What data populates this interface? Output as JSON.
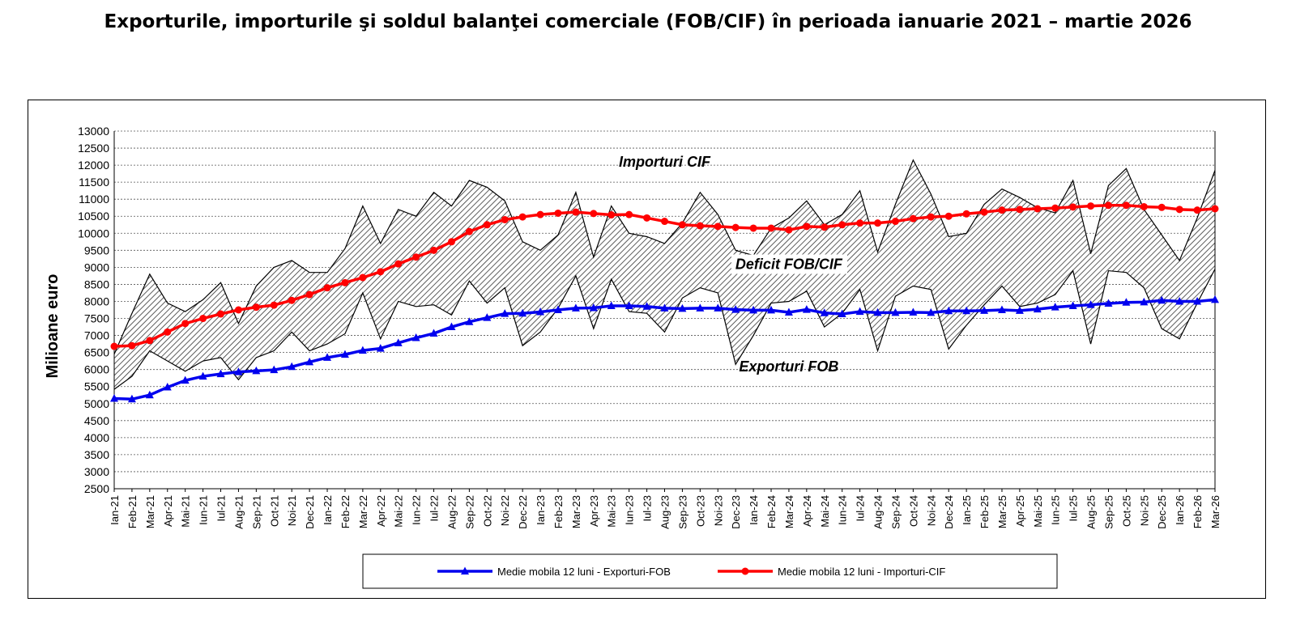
{
  "title": "Exporturile, importurile şi soldul balanţei comerciale (FOB/CIF) în perioada ianuarie 2021 – martie 2026",
  "chart_data": {
    "type": "line",
    "ylabel": "Milioane  euro",
    "xlabel": "",
    "ylim": [
      2500,
      13000
    ],
    "ytick_step": 500,
    "grid": true,
    "legend_position": "bottom",
    "categories": [
      "Ian-21",
      "Feb-21",
      "Mar-21",
      "Apr-21",
      "Mai-21",
      "Iun-21",
      "Iul-21",
      "Aug-21",
      "Sep-21",
      "Oct-21",
      "Noi-21",
      "Dec-21",
      "Ian-22",
      "Feb-22",
      "Mar-22",
      "Apr-22",
      "Mai-22",
      "Iun-22",
      "Iul-22",
      "Aug-22",
      "Sep-22",
      "Oct-22",
      "Noi-22",
      "Dec-22",
      "Ian-23",
      "Feb-23",
      "Mar-23",
      "Apr-23",
      "Mai-23",
      "Iun-23",
      "Iul-23",
      "Aug-23",
      "Sep-23",
      "Oct-23",
      "Noi-23",
      "Dec-23",
      "Ian-24",
      "Feb-24",
      "Mar-24",
      "Apr-24",
      "Mai-24",
      "Iun-24",
      "Iul-24",
      "Aug-24",
      "Sep-24",
      "Oct-24",
      "Noi-24",
      "Dec-24",
      "Ian-25",
      "Feb-25",
      "Mar-25",
      "Apr-25",
      "Mai-25",
      "Iun-25",
      "Iul-25",
      "Aug-25",
      "Sep-25",
      "Oct-25",
      "Noi-25",
      "Dec-25",
      "Ian-26",
      "Feb-26",
      "Mar-26"
    ],
    "monthly_series": [
      {
        "name": "Importuri CIF",
        "values": [
          6450,
          7650,
          8800,
          7950,
          7700,
          8050,
          8550,
          7350,
          8450,
          9000,
          9200,
          8850,
          8850,
          9550,
          10800,
          9700,
          10700,
          10500,
          11200,
          10800,
          11550,
          11350,
          10950,
          9750,
          9500,
          9950,
          11200,
          9300,
          10800,
          10000,
          9900,
          9700,
          10300,
          11200,
          10550,
          9500,
          9350,
          10150,
          10450,
          10950,
          10250,
          10550,
          11250,
          9450,
          10850,
          12150,
          11150,
          9900,
          10000,
          10850,
          11300,
          11050,
          10750,
          10600,
          11550,
          9400,
          11400,
          11900,
          10700,
          9950,
          9200,
          10450,
          11850
        ]
      },
      {
        "name": "Exporturi FOB",
        "values": [
          5420,
          5800,
          6550,
          6250,
          5950,
          6250,
          6350,
          5700,
          6350,
          6550,
          7100,
          6550,
          6750,
          7050,
          8250,
          6900,
          8000,
          7850,
          7900,
          7600,
          8600,
          7950,
          8400,
          6700,
          7100,
          7800,
          8750,
          7200,
          8650,
          7700,
          7650,
          7100,
          8100,
          8400,
          8250,
          6150,
          7000,
          7950,
          8000,
          8300,
          7250,
          7650,
          8350,
          6550,
          8150,
          8450,
          8350,
          6600,
          7300,
          7900,
          8450,
          7850,
          7950,
          8200,
          8900,
          6750,
          8900,
          8850,
          8400,
          7200,
          6900,
          7950,
          8950
        ]
      }
    ],
    "series": [
      {
        "name": "Medie mobila 12 luni - Exporturi-FOB",
        "color": "#0000ee",
        "marker": "triangle",
        "values": [
          5150,
          5130,
          5250,
          5480,
          5680,
          5800,
          5870,
          5930,
          5960,
          5990,
          6080,
          6220,
          6350,
          6440,
          6560,
          6620,
          6780,
          6930,
          7060,
          7250,
          7400,
          7520,
          7640,
          7650,
          7690,
          7750,
          7800,
          7810,
          7870,
          7870,
          7850,
          7800,
          7790,
          7800,
          7800,
          7760,
          7740,
          7740,
          7680,
          7760,
          7660,
          7630,
          7700,
          7670,
          7670,
          7680,
          7670,
          7720,
          7720,
          7730,
          7750,
          7730,
          7770,
          7830,
          7870,
          7900,
          7940,
          7970,
          7980,
          8030,
          8000,
          8000,
          8050
        ]
      },
      {
        "name": "Medie mobila 12 luni - Importuri-CIF",
        "color": "#ff0000",
        "marker": "circle",
        "values": [
          6680,
          6700,
          6850,
          7100,
          7350,
          7500,
          7630,
          7750,
          7830,
          7890,
          8030,
          8200,
          8400,
          8550,
          8700,
          8870,
          9100,
          9300,
          9500,
          9750,
          10050,
          10250,
          10400,
          10480,
          10550,
          10590,
          10620,
          10580,
          10540,
          10550,
          10450,
          10350,
          10250,
          10220,
          10200,
          10170,
          10150,
          10150,
          10100,
          10200,
          10180,
          10250,
          10300,
          10300,
          10350,
          10430,
          10480,
          10500,
          10570,
          10620,
          10680,
          10700,
          10720,
          10740,
          10770,
          10800,
          10820,
          10820,
          10780,
          10760,
          10700,
          10680,
          10720
        ]
      }
    ],
    "annotations": [
      "Importuri CIF",
      "Deficit FOB/CIF",
      "Exporturi FOB"
    ]
  }
}
